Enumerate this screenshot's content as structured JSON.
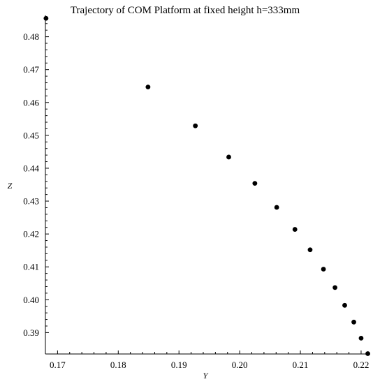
{
  "chart_data": {
    "type": "scatter",
    "title": "Trajectory of COM Platform at fixed height h=333mm",
    "xlabel": "Y",
    "ylabel": "Z",
    "xlim": [
      0.168,
      0.2215
    ],
    "ylim": [
      0.3835,
      0.4865
    ],
    "xticks": [
      "0.17",
      "0.18",
      "0.19",
      "0.20",
      "0.21",
      "0.22"
    ],
    "yticks": [
      "0.39",
      "0.40",
      "0.41",
      "0.42",
      "0.43",
      "0.44",
      "0.45",
      "0.46",
      "0.47",
      "0.48"
    ],
    "grid": false,
    "points": [
      {
        "x": 0.1681,
        "y": 0.4856
      },
      {
        "x": 0.1849,
        "y": 0.4647
      },
      {
        "x": 0.1927,
        "y": 0.4529
      },
      {
        "x": 0.1982,
        "y": 0.4434
      },
      {
        "x": 0.2025,
        "y": 0.4354
      },
      {
        "x": 0.2061,
        "y": 0.4281
      },
      {
        "x": 0.2091,
        "y": 0.4214
      },
      {
        "x": 0.2116,
        "y": 0.4152
      },
      {
        "x": 0.2138,
        "y": 0.4093
      },
      {
        "x": 0.2157,
        "y": 0.4037
      },
      {
        "x": 0.2173,
        "y": 0.3983
      },
      {
        "x": 0.2188,
        "y": 0.3932
      },
      {
        "x": 0.22,
        "y": 0.3883
      },
      {
        "x": 0.2211,
        "y": 0.3836
      }
    ]
  }
}
